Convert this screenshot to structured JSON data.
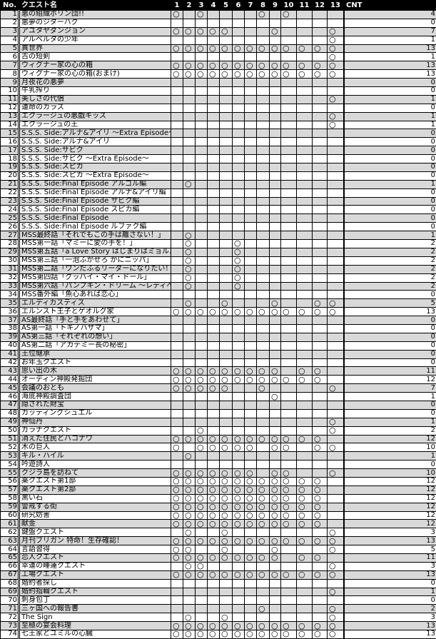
{
  "header": {
    "no": "No.",
    "name": "クエスト名",
    "columns": [
      "1",
      "2",
      "3",
      "4",
      "5",
      "6",
      "7",
      "8",
      "9",
      "10",
      "11",
      "12",
      "13"
    ],
    "cnt": "CNT"
  },
  "mark_symbol": "○",
  "colors": {
    "header_bg": "#000000",
    "header_text": "#ffffff",
    "odd_row": "#d9d9d9",
    "even_row": "#ffffff"
  },
  "rows": [
    {
      "no": "1",
      "name": "悪の組織ポリン団!!",
      "marks": "1010000101000",
      "cnt": "4"
    },
    {
      "no": "2",
      "name": "悪夢のジターバグ",
      "marks": "0000000000000",
      "cnt": "0"
    },
    {
      "no": "3",
      "name": "アユタヤダンジョン",
      "marks": "1111100010001",
      "cnt": "7"
    },
    {
      "no": "4",
      "name": "アルベルタの少年",
      "marks": "0000000000001",
      "cnt": "1"
    },
    {
      "no": "5",
      "name": "異世界",
      "marks": "1111111111111",
      "cnt": "13"
    },
    {
      "no": "6",
      "name": "古の短剣",
      "marks": "0000000000001",
      "cnt": "1"
    },
    {
      "no": "7",
      "name": "ウィグナー家の心の箱",
      "marks": "1111111111111",
      "cnt": "13"
    },
    {
      "no": "8",
      "name": "ウィグナー家の心の箱(おまけ)",
      "marks": "1111111111111",
      "cnt": "13"
    },
    {
      "no": "9",
      "name": "月夜花の悪夢",
      "marks": "0000000000000",
      "cnt": "0"
    },
    {
      "no": "10",
      "name": "牛乳搾り",
      "marks": "0000000000000",
      "cnt": "0"
    },
    {
      "no": "11",
      "name": "美しさの代償",
      "marks": "0000000000001",
      "cnt": "1"
    },
    {
      "no": "12",
      "name": "運命のカラス",
      "marks": "0000000000000",
      "cnt": "0"
    },
    {
      "no": "13",
      "name": "エクラージュの悪戯キッズ",
      "marks": "0000000000001",
      "cnt": "1"
    },
    {
      "no": "14",
      "name": "エクラージュの王",
      "marks": "0000000000001",
      "cnt": "1"
    },
    {
      "no": "15",
      "name": "S.S.S.  Side:アルナ&アイリ  ～Extra  Episode～",
      "marks": "0000000000000",
      "cnt": "0"
    },
    {
      "no": "16",
      "name": "S.S.S.  Side:アルナ&アイリ",
      "marks": "0000000000000",
      "cnt": "0"
    },
    {
      "no": "17",
      "name": "S.S.S.  Side:サビク",
      "marks": "0000000000000",
      "cnt": "0"
    },
    {
      "no": "18",
      "name": "S.S.S.  Side:サビク  ～Extra Episode～",
      "marks": "0000000000000",
      "cnt": "0"
    },
    {
      "no": "19",
      "name": "S.S.S.  Side:スピカ",
      "marks": "0000000000000",
      "cnt": "0"
    },
    {
      "no": "20",
      "name": "S.S.S.  Side:スピカ  ～Extra Episode～",
      "marks": "0000000000000",
      "cnt": "0"
    },
    {
      "no": "21",
      "name": "S.S.S.  Side:Final Episode アルゴル編",
      "marks": "0100000000000",
      "cnt": "1"
    },
    {
      "no": "22",
      "name": "S.S.S.  Side:Final Episode アルナ&アイリ編",
      "marks": "0000000000000",
      "cnt": "0"
    },
    {
      "no": "23",
      "name": "S.S.S.  Side:Final Episode サビク編",
      "marks": "0000000000000",
      "cnt": "0"
    },
    {
      "no": "24",
      "name": "S.S.S.  Side:Final Episode スピカ編",
      "marks": "0000000000000",
      "cnt": "0"
    },
    {
      "no": "25",
      "name": "S.S.S.  Side:Final Episode",
      "marks": "0000000000000",
      "cnt": "0"
    },
    {
      "no": "26",
      "name": "S.S.S.  Side:Final Episode ルファク編",
      "marks": "0000000000000",
      "cnt": "0"
    },
    {
      "no": "27",
      "name": "MSS最終話「それでもこの手は離さない！」",
      "marks": "0100000000000",
      "cnt": "1"
    },
    {
      "no": "28",
      "name": "MSS第一話「マミーに愛の手を！」",
      "marks": "0100010000000",
      "cnt": "2"
    },
    {
      "no": "29",
      "name": "MSS第五話「a Love Story はじまりはミョルニール」",
      "marks": "0100010000000",
      "cnt": "2"
    },
    {
      "no": "30",
      "name": "MSS第三話「一泡ふかせろ かにニッパ」",
      "marks": "0100010000000",
      "cnt": "2"
    },
    {
      "no": "31",
      "name": "MSS第二話「ワンだふるリーダーになりたい！」",
      "marks": "0100010000000",
      "cnt": "2"
    },
    {
      "no": "32",
      "name": "MSS第四話「グッバイ・マイ・ドール」",
      "marks": "0100010000000",
      "cnt": "2"
    },
    {
      "no": "33",
      "name": "MSS第六話「パンプキン・ドリーム ～レディへの道～」",
      "marks": "0100010000000",
      "cnt": "2"
    },
    {
      "no": "34",
      "name": "MSS番外編「魚心あれば恋心」",
      "marks": "0000000000000",
      "cnt": "0"
    },
    {
      "no": "35",
      "name": "エルディカスティス",
      "marks": "0100100010011",
      "cnt": "5"
    },
    {
      "no": "36",
      "name": "エルンスト王子とゲオルグ家",
      "marks": "1111111111111",
      "cnt": "13"
    },
    {
      "no": "37",
      "name": "AS最終話「手と手をあわせて」",
      "marks": "0000000000000",
      "cnt": "0"
    },
    {
      "no": "38",
      "name": "AS第一話「トキノハザマ」",
      "marks": "0000000000000",
      "cnt": "0"
    },
    {
      "no": "39",
      "name": "AS第三話「それぞれの想い」",
      "marks": "0000000000000",
      "cnt": "0"
    },
    {
      "no": "40",
      "name": "AS第二話「アカデミー長の秘密」",
      "marks": "0000000000000",
      "cnt": "0"
    },
    {
      "no": "41",
      "name": "王位継承",
      "marks": "0000000000000",
      "cnt": "0"
    },
    {
      "no": "42",
      "name": "お年玉クエスト",
      "marks": "0000000000000",
      "cnt": "0"
    },
    {
      "no": "43",
      "name": "思い出の木",
      "marks": "1111111110110",
      "cnt": "11"
    },
    {
      "no": "44",
      "name": "オーディン神殿発掘団",
      "marks": "1111111111110",
      "cnt": "12"
    },
    {
      "no": "45",
      "name": "会議のおとも",
      "marks": "1111100100001",
      "cnt": "7"
    },
    {
      "no": "46",
      "name": "海底神殿調査団",
      "marks": "0000000010000",
      "cnt": "1"
    },
    {
      "no": "47",
      "name": "隠された財宝",
      "marks": "0000000000000",
      "cnt": "0"
    },
    {
      "no": "48",
      "name": "カッティングシュエル",
      "marks": "0000000000000",
      "cnt": "0"
    },
    {
      "no": "49",
      "name": "神仙丹",
      "marks": "0000000000001",
      "cnt": "1"
    },
    {
      "no": "50",
      "name": "ガラナクエスト",
      "marks": "0010000000001",
      "cnt": "2"
    },
    {
      "no": "51",
      "name": "消えた住民とバコナワ",
      "marks": "1111111111110",
      "cnt": "12"
    },
    {
      "no": "52",
      "name": "木の巨人",
      "marks": "1011111011011",
      "cnt": "10"
    },
    {
      "no": "53",
      "name": "キル・ハイル",
      "marks": "0100000000000",
      "cnt": "1"
    },
    {
      "no": "54",
      "name": "吟遊詩人",
      "marks": "0000000000000",
      "cnt": "0"
    },
    {
      "no": "55",
      "name": "クジラ島を訪ねて",
      "marks": "1111111011001",
      "cnt": "10"
    },
    {
      "no": "56",
      "name": "薬クエスト第1部",
      "marks": "1111111111110",
      "cnt": "12"
    },
    {
      "no": "57",
      "name": "薬クエスト第2部",
      "marks": "1111111111110",
      "cnt": "12"
    },
    {
      "no": "58",
      "name": "黒い石",
      "marks": "1111111111110",
      "cnt": "12"
    },
    {
      "no": "59",
      "name": "警戒する街",
      "marks": "1111111111110",
      "cnt": "12"
    },
    {
      "no": "60",
      "name": "研究妨害",
      "marks": "1111111111110",
      "cnt": "12"
    },
    {
      "no": "61",
      "name": "献金",
      "marks": "1111111111110",
      "cnt": "12"
    },
    {
      "no": "62",
      "name": "鍵盤クエスト",
      "marks": "0100100000001",
      "cnt": "3"
    },
    {
      "no": "63",
      "name": "月刊ブリガン  特命！生存確認！",
      "marks": "1111111111111",
      "cnt": "13"
    },
    {
      "no": "64",
      "name": "言語習得",
      "marks": "1100100010001",
      "cnt": "5"
    },
    {
      "no": "65",
      "name": "恋人クエスト",
      "marks": "1111111110110",
      "cnt": "11"
    },
    {
      "no": "66",
      "name": "幸運の睡蓮クエスト",
      "marks": "0110000000001",
      "cnt": "3"
    },
    {
      "no": "67",
      "name": "工場クエスト",
      "marks": "1111111111111",
      "cnt": "13"
    },
    {
      "no": "68",
      "name": "婚約者探し",
      "marks": "0000000000000",
      "cnt": "0"
    },
    {
      "no": "69",
      "name": "婚約指輪クエスト",
      "marks": "0000000000001",
      "cnt": "1"
    },
    {
      "no": "70",
      "name": "刺身包丁",
      "marks": "0000000000000",
      "cnt": "0"
    },
    {
      "no": "71",
      "name": "三ヶ国への報告書",
      "marks": "0000000100001",
      "cnt": "2"
    },
    {
      "no": "72",
      "name": "The Sign",
      "marks": "0100100000001",
      "cnt": "3"
    },
    {
      "no": "73",
      "name": "至極の宴会料理",
      "marks": "1111111111111",
      "cnt": "13"
    },
    {
      "no": "74",
      "name": "七王家とユミルの心臓",
      "marks": "1111111111111",
      "cnt": "13"
    }
  ]
}
